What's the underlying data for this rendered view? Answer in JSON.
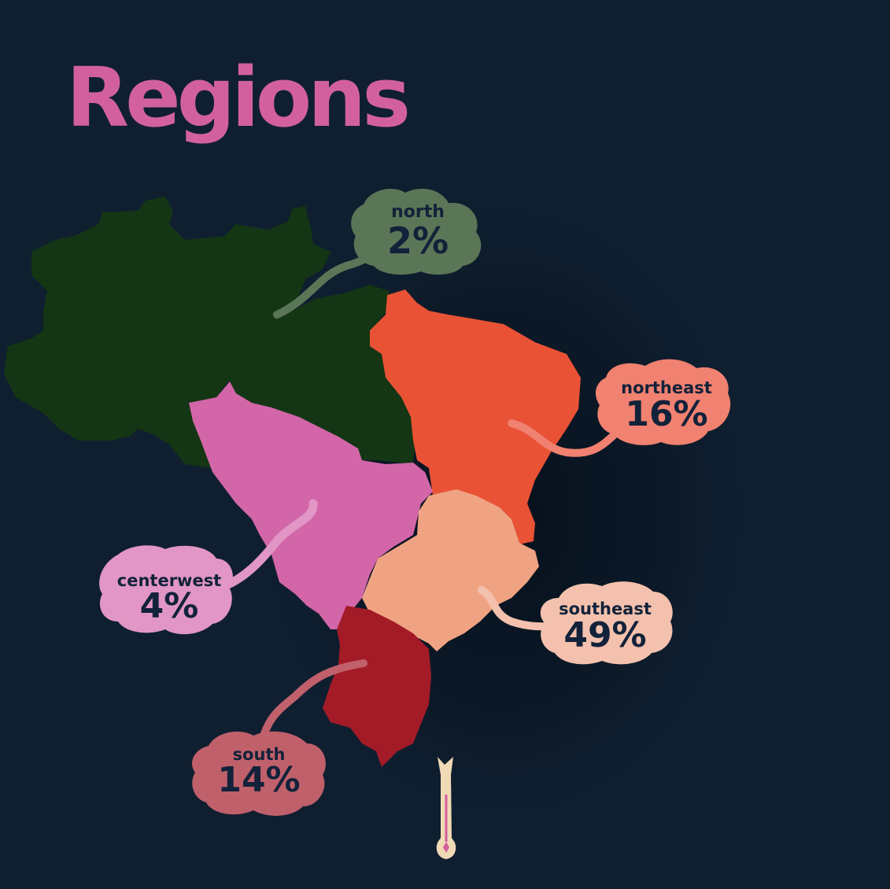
{
  "title": "Regions",
  "colors": {
    "background": "#0f1f30",
    "title": "#d2609f",
    "label_text": "#12223a",
    "north": "#143614",
    "north_bubble": "#5a7657",
    "northeast": "#e95235",
    "northeast_bubble": "#f18170",
    "centerwest": "#d266a8",
    "centerwest_bubble": "#e196c5",
    "southeast": "#f0a383",
    "southeast_bubble": "#f3c1ad",
    "south": "#a31b27",
    "south_bubble": "#c0606b",
    "thermometer": "#f0d9b5"
  },
  "regions": [
    {
      "key": "north",
      "name": "north",
      "share": "2%"
    },
    {
      "key": "northeast",
      "name": "northeast",
      "share": "16%"
    },
    {
      "key": "centerwest",
      "name": "centerwest",
      "share": "4%"
    },
    {
      "key": "southeast",
      "name": "southeast",
      "share": "49%"
    },
    {
      "key": "south",
      "name": "south",
      "share": "14%"
    }
  ]
}
